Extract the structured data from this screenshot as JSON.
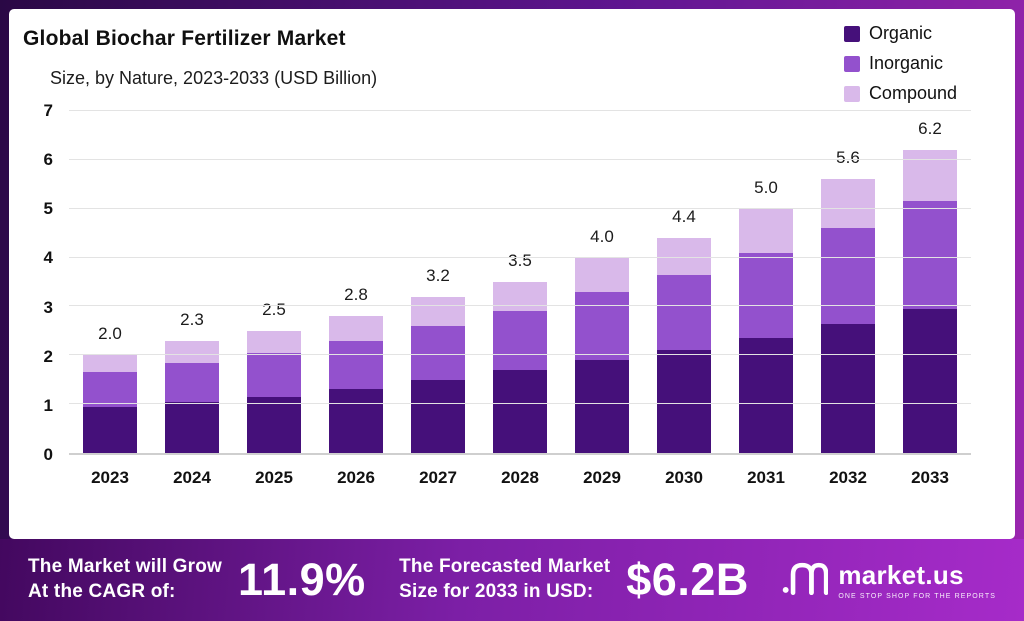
{
  "chart_data": {
    "type": "bar",
    "stacked": true,
    "title": "Global Biochar Fertilizer Market",
    "subtitle": "Size, by Nature, 2023-2033 (USD Billion)",
    "categories": [
      "2023",
      "2024",
      "2025",
      "2026",
      "2027",
      "2028",
      "2029",
      "2030",
      "2031",
      "2032",
      "2033"
    ],
    "series": [
      {
        "name": "Organic",
        "color": "#45107a",
        "values": [
          0.95,
          1.05,
          1.15,
          1.3,
          1.5,
          1.7,
          1.9,
          2.1,
          2.35,
          2.65,
          2.95
        ]
      },
      {
        "name": "Inorganic",
        "color": "#9351cd",
        "values": [
          0.7,
          0.8,
          0.9,
          1.0,
          1.1,
          1.2,
          1.4,
          1.55,
          1.75,
          1.95,
          2.2
        ]
      },
      {
        "name": "Compound",
        "color": "#d9b9ea",
        "values": [
          0.35,
          0.45,
          0.45,
          0.5,
          0.6,
          0.6,
          0.7,
          0.75,
          0.9,
          1.0,
          1.05
        ]
      }
    ],
    "totals": [
      "2.0",
      "2.3",
      "2.5",
      "2.8",
      "3.2",
      "3.5",
      "4.0",
      "4.4",
      "5.0",
      "5.6",
      "6.2"
    ],
    "ylim": [
      0,
      7
    ],
    "yticks": [
      "0",
      "1",
      "2",
      "3",
      "4",
      "5",
      "6",
      "7"
    ],
    "grid": "horizontal",
    "legend_position": "top-right"
  },
  "banner": {
    "cagr_line1": "The Market will Grow",
    "cagr_line2": "At the CAGR of:",
    "cagr_value": "11.9%",
    "forecast_line1": "The Forecasted Market",
    "forecast_line2": "Size for 2033 in USD:",
    "forecast_value": "$6.2B",
    "logo_text": "market.us",
    "logo_tagline": "ONE STOP SHOP FOR THE REPORTS"
  }
}
